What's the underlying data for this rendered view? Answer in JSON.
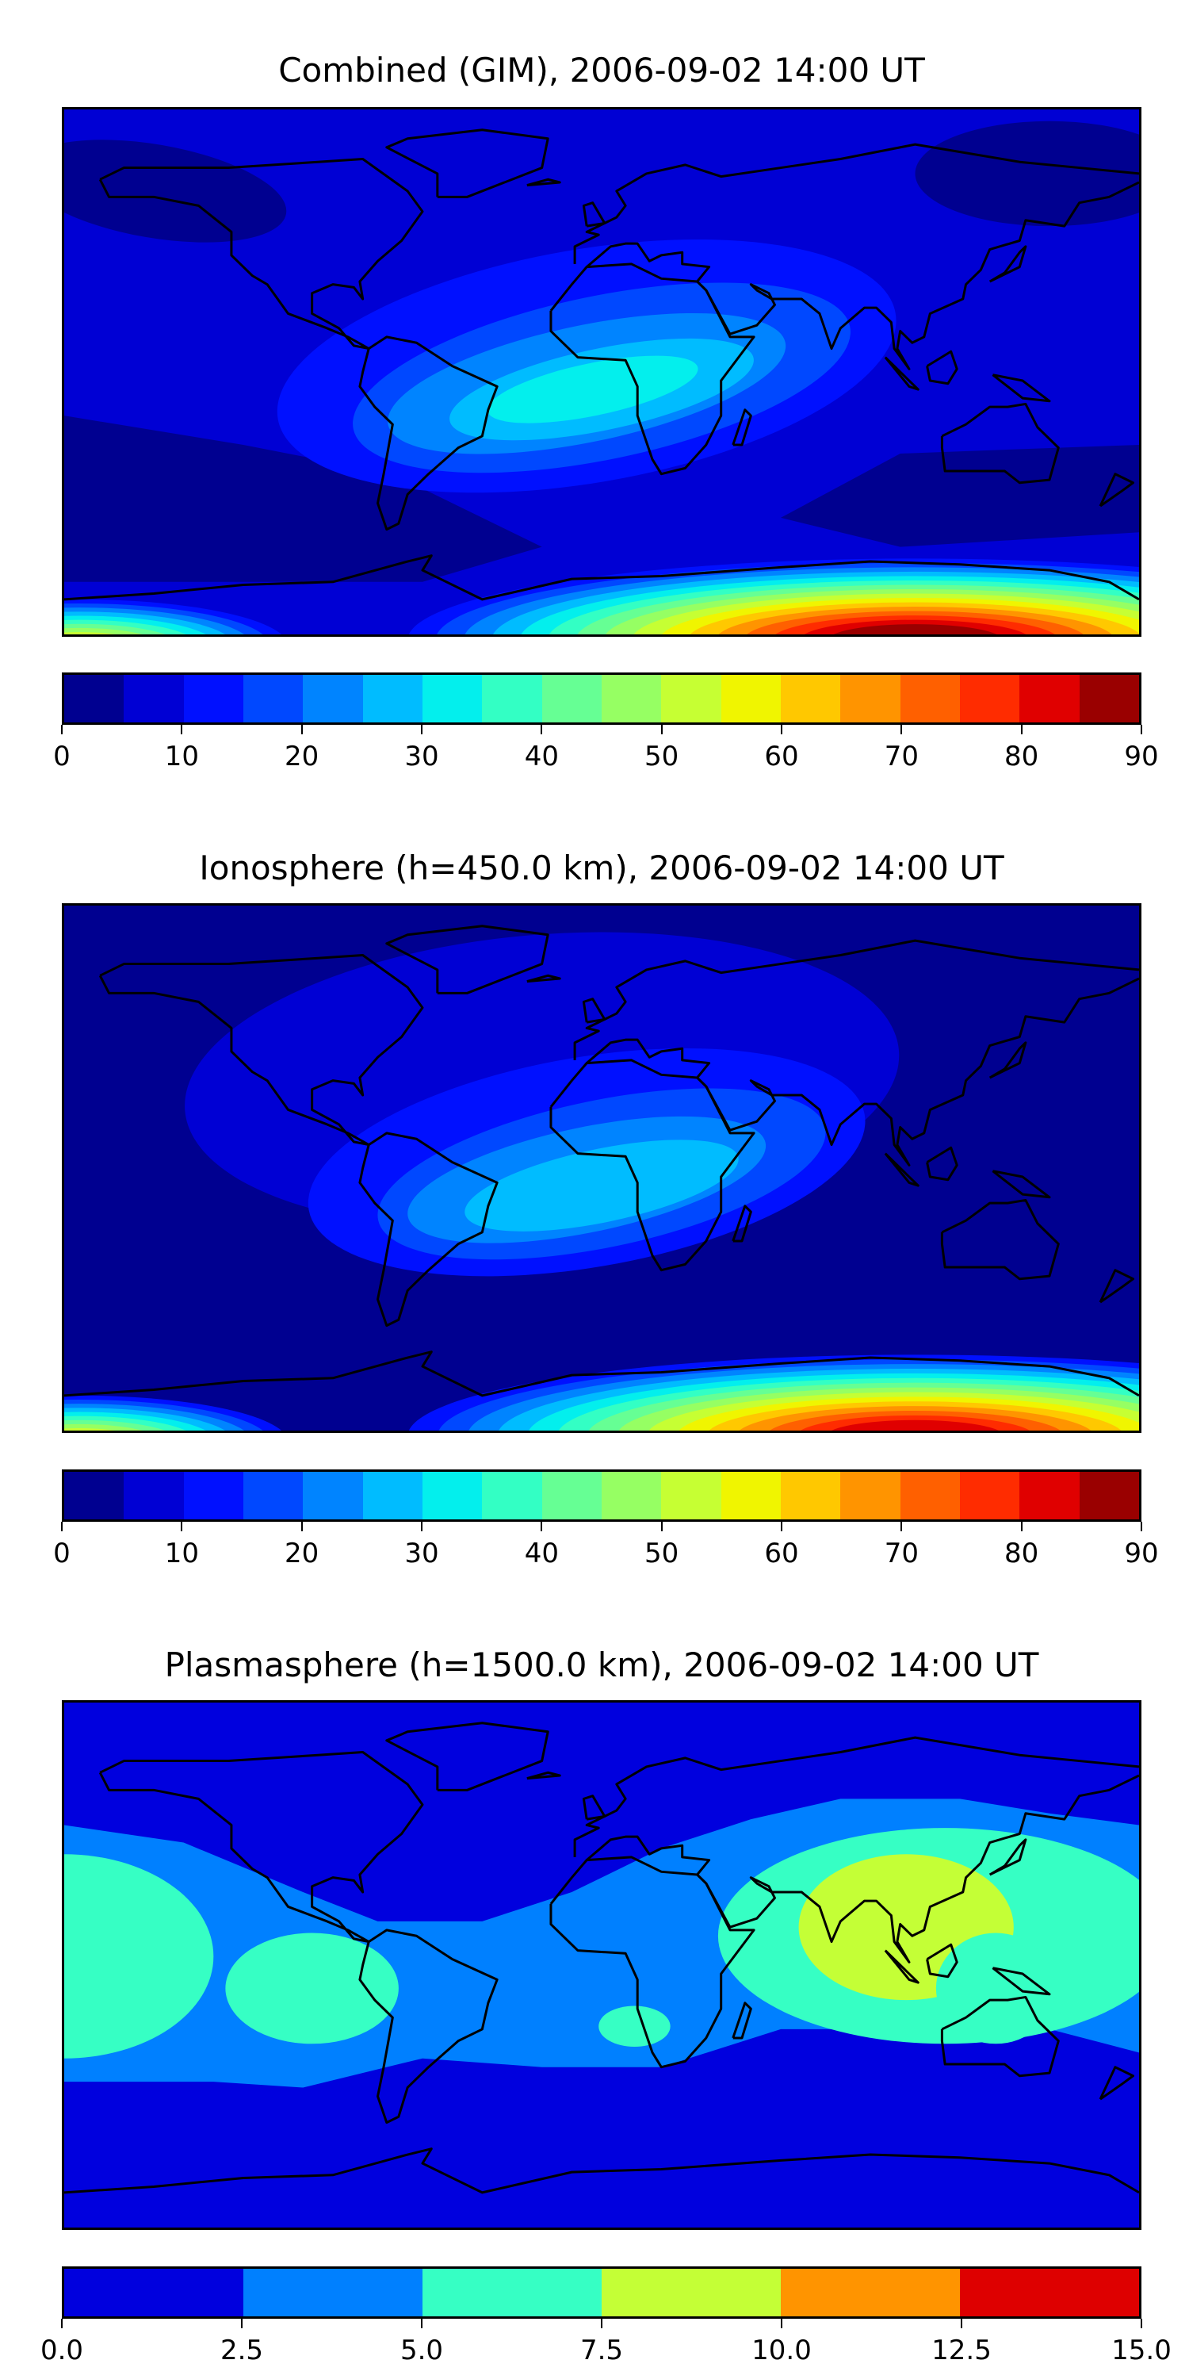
{
  "chart_data": [
    {
      "type": "heatmap",
      "title": "Combined (GIM), 2006-09-02 14:00 UT",
      "projection": "plate-carree, lon -180..180, lat -90..90",
      "colorbar": {
        "levels": [
          0,
          5,
          10,
          15,
          20,
          25,
          30,
          35,
          40,
          45,
          50,
          55,
          60,
          65,
          70,
          75,
          80,
          85,
          90
        ],
        "tick_labels": [
          "0",
          "10",
          "20",
          "30",
          "40",
          "50",
          "60",
          "70",
          "80",
          "90"
        ],
        "tick_values": [
          0,
          10,
          20,
          30,
          40,
          50,
          60,
          70,
          80,
          90
        ],
        "colors": [
          "#000090",
          "#0000d4",
          "#0010ff",
          "#0048ff",
          "#0084ff",
          "#00bcff",
          "#03efed",
          "#33ffc4",
          "#66ff94",
          "#96ff63",
          "#c6ff33",
          "#f0f500",
          "#ffc800",
          "#ff9400",
          "#ff6000",
          "#ff2c00",
          "#e00000",
          "#9a0000"
        ]
      },
      "background_level": 1,
      "peak_regions": [
        {
          "name": "equatorial anomaly (Atlantic/Africa)",
          "max_level_range": [
            30,
            35
          ]
        },
        {
          "name": "south polar region near lon 105",
          "max_level_range": [
            85,
            90
          ]
        }
      ]
    },
    {
      "type": "heatmap",
      "title": "Ionosphere  (h=450.0 km), 2006-09-02 14:00 UT",
      "projection": "plate-carree, lon -180..180, lat -90..90",
      "colorbar": {
        "levels": [
          0,
          5,
          10,
          15,
          20,
          25,
          30,
          35,
          40,
          45,
          50,
          55,
          60,
          65,
          70,
          75,
          80,
          85,
          90
        ],
        "tick_labels": [
          "0",
          "10",
          "20",
          "30",
          "40",
          "50",
          "60",
          "70",
          "80",
          "90"
        ],
        "tick_values": [
          0,
          10,
          20,
          30,
          40,
          50,
          60,
          70,
          80,
          90
        ],
        "colors": [
          "#000090",
          "#0000d4",
          "#0010ff",
          "#0048ff",
          "#0084ff",
          "#00bcff",
          "#03efed",
          "#33ffc4",
          "#66ff94",
          "#96ff63",
          "#c6ff33",
          "#f0f500",
          "#ffc800",
          "#ff9400",
          "#ff6000",
          "#ff2c00",
          "#e00000",
          "#9a0000"
        ]
      },
      "background_level": 0,
      "peak_regions": [
        {
          "name": "equatorial anomaly (Atlantic/Africa)",
          "max_level_range": [
            25,
            30
          ]
        },
        {
          "name": "south polar region near lon 105",
          "max_level_range": [
            80,
            85
          ]
        }
      ]
    },
    {
      "type": "heatmap",
      "title": "Plasmasphere (h=1500.0 km), 2006-09-02 14:00 UT",
      "projection": "plate-carree, lon -180..180, lat -90..90",
      "colorbar": {
        "levels": [
          0,
          2.5,
          5,
          7.5,
          10,
          12.5,
          15
        ],
        "tick_labels": [
          "0.0",
          "2.5",
          "5.0",
          "7.5",
          "10.0",
          "12.5",
          "15.0"
        ],
        "tick_values": [
          0,
          2.5,
          5,
          7.5,
          10,
          12.5,
          15
        ],
        "colors": [
          "#0000de",
          "#0080ff",
          "#36ffc4",
          "#c4ff36",
          "#ff9400",
          "#de0000"
        ]
      },
      "background_level": 0,
      "peak_regions": [
        {
          "name": "South/Southeast Asia",
          "max_level_range": [
            7.5,
            10
          ]
        }
      ]
    }
  ]
}
